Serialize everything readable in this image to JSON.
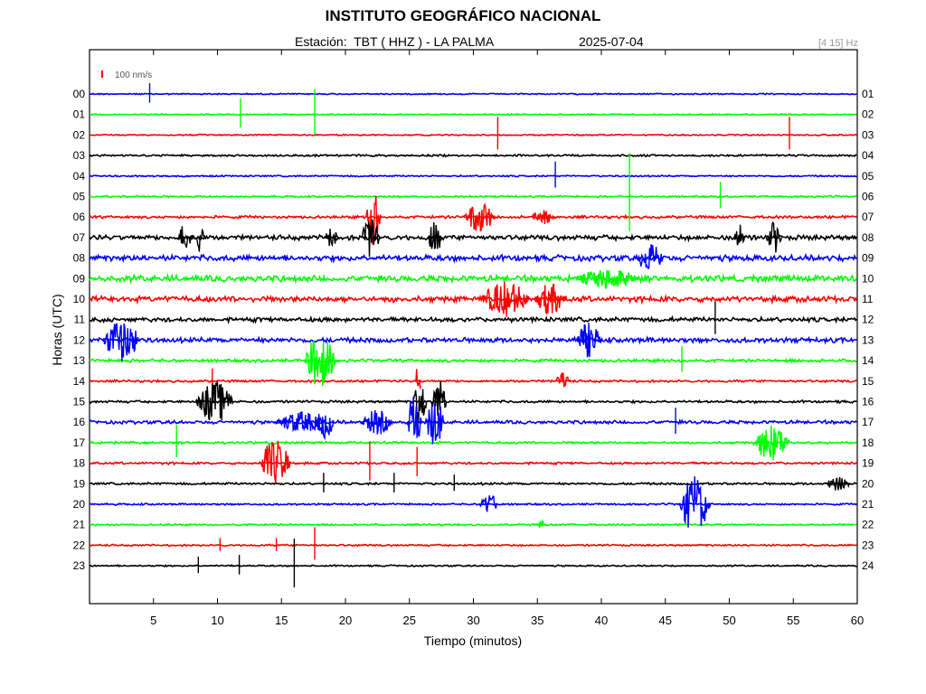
{
  "header": {
    "title": "INSTITUTO GEOGRÁFICO NACIONAL",
    "subtitle": "Estación:  TBT ( HHZ ) - LA PALMA",
    "date": "2025-07-04",
    "band": "[4 15] Hz"
  },
  "chart_data": {
    "type": "line",
    "title": "INSTITUTO GEOGRÁFICO NACIONAL",
    "xlabel": "Tiempo (minutos)",
    "ylabel": "Horas (UTC)",
    "xlim": [
      0,
      60
    ],
    "x_ticks": [
      "5",
      "10",
      "15",
      "20",
      "25",
      "30",
      "35",
      "40",
      "45",
      "50",
      "55",
      "60"
    ],
    "left_hour_labels": [
      "00",
      "01",
      "02",
      "03",
      "04",
      "05",
      "06",
      "07",
      "08",
      "09",
      "10",
      "11",
      "12",
      "13",
      "14",
      "15",
      "16",
      "17",
      "18",
      "19",
      "20",
      "21",
      "22",
      "23"
    ],
    "right_hour_labels": [
      "01",
      "02",
      "03",
      "04",
      "05",
      "06",
      "07",
      "08",
      "09",
      "10",
      "11",
      "12",
      "13",
      "14",
      "15",
      "16",
      "17",
      "18",
      "19",
      "20",
      "21",
      "22",
      "23",
      "24"
    ],
    "scale_label": "100 nm/s",
    "scale_color": "#ff0000",
    "trace_colors": [
      "#0000ff",
      "#00ff00",
      "#ff0000",
      "#000000"
    ],
    "grid": false,
    "events": [
      {
        "hour": 0,
        "t": 4.7,
        "amp": 0.6,
        "dur": 0.2
      },
      {
        "hour": 1,
        "t": 11.8,
        "amp": 0.9,
        "dur": 0.3
      },
      {
        "hour": 1,
        "t": 17.6,
        "amp": 1.4,
        "dur": 0.3
      },
      {
        "hour": 2,
        "t": 31.9,
        "amp": 1.0,
        "dur": 0.2
      },
      {
        "hour": 2,
        "t": 54.7,
        "amp": 1.0,
        "dur": 0.2
      },
      {
        "hour": 4,
        "t": 36.4,
        "amp": 0.8,
        "dur": 0.2
      },
      {
        "hour": 5,
        "t": 42.2,
        "amp": 2.4,
        "dur": 0.2
      },
      {
        "hour": 5,
        "t": 49.3,
        "amp": 0.8,
        "dur": 0.2
      },
      {
        "hour": 6,
        "t": 22.2,
        "amp": 1.6,
        "dur": 1.2
      },
      {
        "hour": 6,
        "t": 30.5,
        "amp": 0.9,
        "dur": 2.5
      },
      {
        "hour": 6,
        "t": 35.5,
        "amp": 0.4,
        "dur": 2.0
      },
      {
        "hour": 7,
        "t": 7.5,
        "amp": 0.8,
        "dur": 1.2
      },
      {
        "hour": 7,
        "t": 8.7,
        "amp": 0.9,
        "dur": 0.8
      },
      {
        "hour": 7,
        "t": 18.9,
        "amp": 0.6,
        "dur": 1.0
      },
      {
        "hour": 7,
        "t": 22.0,
        "amp": 1.3,
        "dur": 1.5
      },
      {
        "hour": 7,
        "t": 27.0,
        "amp": 0.9,
        "dur": 1.2
      },
      {
        "hour": 7,
        "t": 50.8,
        "amp": 0.8,
        "dur": 0.8
      },
      {
        "hour": 7,
        "t": 53.5,
        "amp": 0.9,
        "dur": 1.2
      },
      {
        "hour": 8,
        "t": 43.8,
        "amp": 0.8,
        "dur": 2.2
      },
      {
        "hour": 9,
        "t": 40.5,
        "amp": 0.6,
        "dur": 5.0
      },
      {
        "hour": 10,
        "t": 32.5,
        "amp": 1.0,
        "dur": 4.0
      },
      {
        "hour": 10,
        "t": 36.0,
        "amp": 0.9,
        "dur": 2.5
      },
      {
        "hour": 11,
        "t": 48.9,
        "amp": 1.0,
        "dur": 0.3
      },
      {
        "hour": 12,
        "t": 2.5,
        "amp": 1.2,
        "dur": 3.0
      },
      {
        "hour": 12,
        "t": 39.0,
        "amp": 1.0,
        "dur": 2.0
      },
      {
        "hour": 13,
        "t": 18.0,
        "amp": 1.5,
        "dur": 2.5
      },
      {
        "hour": 13,
        "t": 46.3,
        "amp": 0.8,
        "dur": 0.2
      },
      {
        "hour": 14,
        "t": 9.6,
        "amp": 0.7,
        "dur": 0.3
      },
      {
        "hour": 14,
        "t": 25.7,
        "amp": 1.0,
        "dur": 0.5
      },
      {
        "hour": 14,
        "t": 37.0,
        "amp": 0.5,
        "dur": 1.2
      },
      {
        "hour": 15,
        "t": 9.8,
        "amp": 1.2,
        "dur": 3.0
      },
      {
        "hour": 15,
        "t": 25.8,
        "amp": 1.5,
        "dur": 1.2
      },
      {
        "hour": 15,
        "t": 27.3,
        "amp": 1.3,
        "dur": 1.2
      },
      {
        "hour": 16,
        "t": 16.5,
        "amp": 0.6,
        "dur": 4.0
      },
      {
        "hour": 16,
        "t": 18.4,
        "amp": 0.9,
        "dur": 1.5
      },
      {
        "hour": 16,
        "t": 22.5,
        "amp": 0.7,
        "dur": 2.5
      },
      {
        "hour": 16,
        "t": 25.4,
        "amp": 1.6,
        "dur": 1.2
      },
      {
        "hour": 16,
        "t": 27.0,
        "amp": 1.4,
        "dur": 1.5
      },
      {
        "hour": 16,
        "t": 45.8,
        "amp": 0.8,
        "dur": 0.2
      },
      {
        "hour": 17,
        "t": 6.8,
        "amp": 1.0,
        "dur": 0.2
      },
      {
        "hour": 17,
        "t": 53.3,
        "amp": 1.0,
        "dur": 3.0
      },
      {
        "hour": 18,
        "t": 14.5,
        "amp": 1.3,
        "dur": 2.5
      },
      {
        "hour": 18,
        "t": 21.9,
        "amp": 1.2,
        "dur": 0.2
      },
      {
        "hour": 18,
        "t": 25.6,
        "amp": 0.9,
        "dur": 0.3
      },
      {
        "hour": 19,
        "t": 18.3,
        "amp": 0.6,
        "dur": 0.2
      },
      {
        "hour": 19,
        "t": 23.8,
        "amp": 0.6,
        "dur": 0.2
      },
      {
        "hour": 19,
        "t": 28.5,
        "amp": 0.5,
        "dur": 0.2
      },
      {
        "hour": 19,
        "t": 58.5,
        "amp": 0.4,
        "dur": 2.0
      },
      {
        "hour": 20,
        "t": 31.2,
        "amp": 0.6,
        "dur": 1.5
      },
      {
        "hour": 20,
        "t": 47.3,
        "amp": 1.6,
        "dur": 2.5
      },
      {
        "hour": 21,
        "t": 35.3,
        "amp": 0.3,
        "dur": 0.5
      },
      {
        "hour": 22,
        "t": 10.2,
        "amp": 0.4,
        "dur": 0.3
      },
      {
        "hour": 22,
        "t": 14.6,
        "amp": 0.4,
        "dur": 0.3
      },
      {
        "hour": 22,
        "t": 17.6,
        "amp": 1.0,
        "dur": 0.2
      },
      {
        "hour": 23,
        "t": 8.5,
        "amp": 0.5,
        "dur": 0.2
      },
      {
        "hour": 23,
        "t": 11.7,
        "amp": 0.6,
        "dur": 0.2
      },
      {
        "hour": 23,
        "t": 16.0,
        "amp": 1.5,
        "dur": 0.2
      }
    ]
  }
}
